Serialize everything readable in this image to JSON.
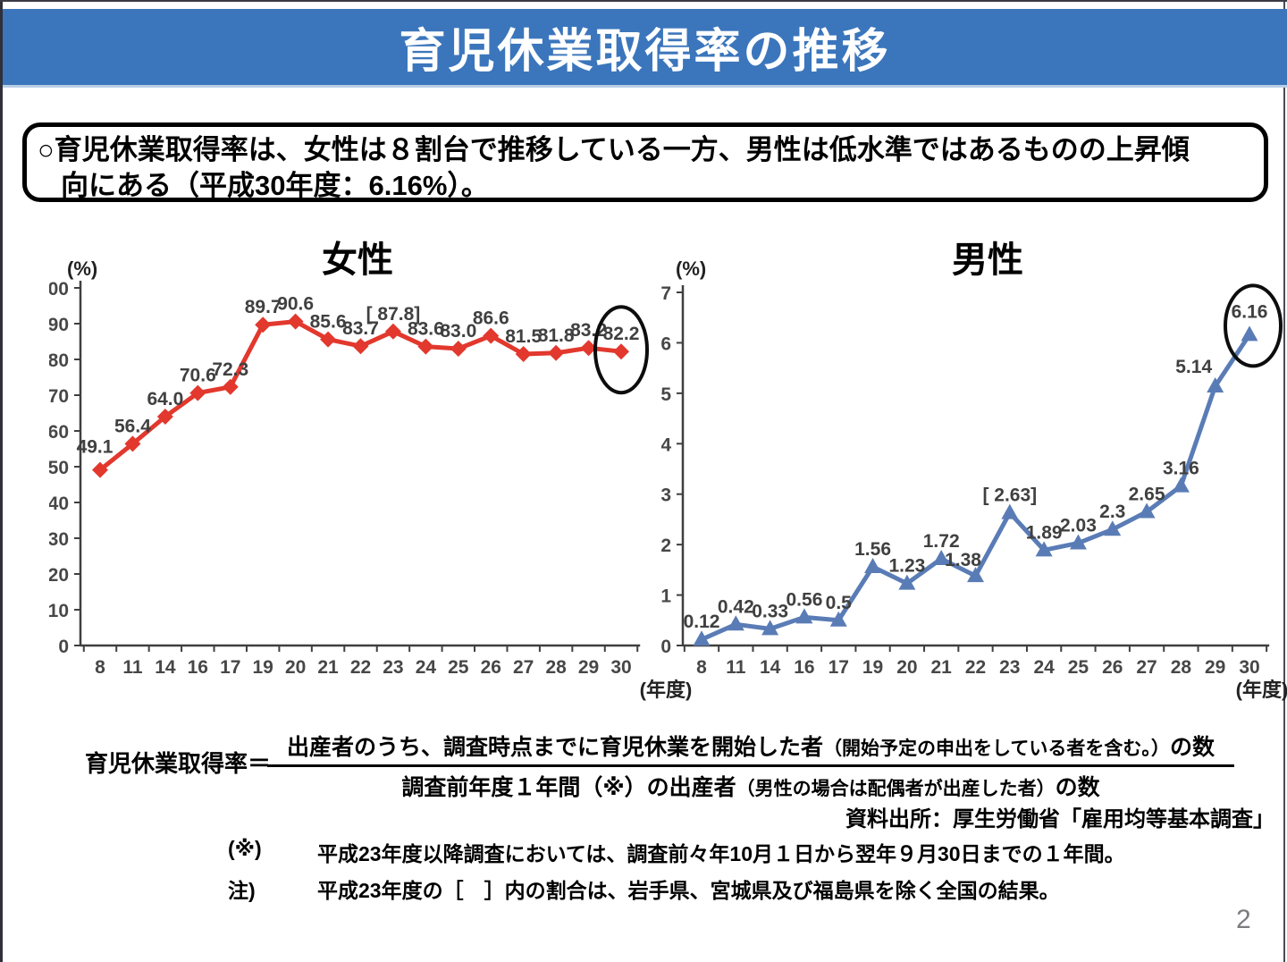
{
  "header": {
    "title": "育児休業取得率の推移",
    "bg_color": "#3b76bc"
  },
  "summary": {
    "line1": "○育児休業取得率は、女性は８割台で推移している一方、男性は低水準ではあるものの上昇傾",
    "line2": "向にある（平成30年度：6.16%）。"
  },
  "chart_data": [
    {
      "type": "line",
      "title": "女性",
      "unit_label": "(%)",
      "xaxis_label": "(年度)",
      "categories": [
        "8",
        "11",
        "14",
        "16",
        "17",
        "19",
        "20",
        "21",
        "22",
        "23",
        "24",
        "25",
        "26",
        "27",
        "28",
        "29",
        "30"
      ],
      "values": [
        49.1,
        56.4,
        64.0,
        70.6,
        72.3,
        89.7,
        90.6,
        85.6,
        83.7,
        87.8,
        83.6,
        83.0,
        86.6,
        81.5,
        81.8,
        83.2,
        82.2
      ],
      "labels": [
        "49.1",
        "56.4",
        "64.0",
        "70.6",
        "72.3",
        "89.7",
        "90.6",
        "85.6",
        "83.7",
        "[ 87.8]",
        "83.6",
        "83.0",
        "86.6",
        "81.5",
        "81.8",
        "83.2",
        "82.2"
      ],
      "ylim": [
        0,
        100
      ],
      "ytick_step": 10,
      "grid": false,
      "legend": "none",
      "color": "#e2382d",
      "marker": "diamond",
      "highlight_last": true
    },
    {
      "type": "line",
      "title": "男性",
      "unit_label": "(%)",
      "xaxis_label": "(年度)",
      "categories": [
        "8",
        "11",
        "14",
        "16",
        "17",
        "19",
        "20",
        "21",
        "22",
        "23",
        "24",
        "25",
        "26",
        "27",
        "28",
        "29",
        "30"
      ],
      "values": [
        0.12,
        0.42,
        0.33,
        0.56,
        0.5,
        1.56,
        1.23,
        1.72,
        1.38,
        2.63,
        1.89,
        2.03,
        2.3,
        2.65,
        3.16,
        5.14,
        6.16
      ],
      "labels": [
        "0.12",
        "0.42",
        "0.33",
        "0.56",
        "0.5",
        "1.56",
        "1.23",
        "1.72",
        "1.38",
        "[ 2.63]",
        "1.89",
        "2.03",
        "2.3",
        "2.65",
        "3.16",
        "5.14",
        "6.16"
      ],
      "ylim": [
        0,
        7
      ],
      "ytick_step": 1,
      "grid": false,
      "legend": "none",
      "color": "#5a7cb6",
      "marker": "triangle",
      "highlight_last": true
    }
  ],
  "formula": {
    "lhs": "育児休業取得率＝",
    "numerator_main": "出産者のうち、調査時点までに育児休業を開始した者",
    "numerator_paren": "（開始予定の申出をしている者を含む。）",
    "numerator_suffix": "の数",
    "denominator_main": "調査前年度１年間（※）の出産者",
    "denominator_paren": "（男性の場合は配偶者が出産した者）",
    "denominator_suffix": "の数"
  },
  "source": "資料出所：厚生労働省「雇用均等基本調査」",
  "notes": [
    {
      "label": "(※)",
      "text": "平成23年度以降調査においては、調査前々年10月１日から翌年９月30日までの１年間。"
    },
    {
      "label": "注)",
      "text": "平成23年度の［　］内の割合は、岩手県、宮城県及び福島県を除く全国の結果。"
    }
  ],
  "page": {
    "number": "2"
  }
}
